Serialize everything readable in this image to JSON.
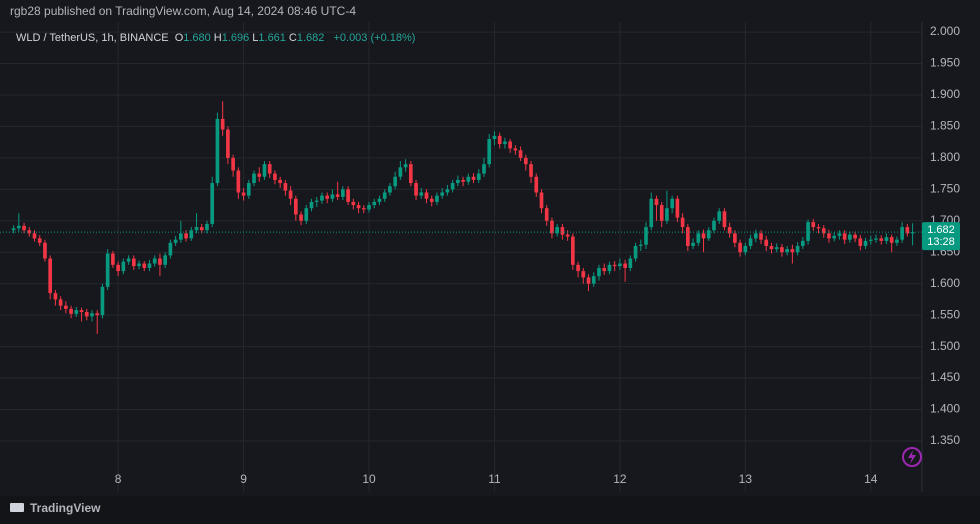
{
  "chart_data": {
    "type": "candlestick",
    "published": "rgb28 published on TradingView.com, Aug 14, 2024 08:46 UTC-4",
    "symbol": "WLD / TetherUS, 1h, BINANCE",
    "ohlc_legend": [
      {
        "label": "O",
        "value": "1.680"
      },
      {
        "label": "H",
        "value": "1.696"
      },
      {
        "label": "L",
        "value": "1.661"
      },
      {
        "label": "C",
        "value": "1.682"
      }
    ],
    "change": "+0.003 (+0.18%)",
    "last_price": "1.682",
    "countdown": "13:28",
    "brand": "TradingView",
    "up_color": "#089981",
    "down_color": "#f23645",
    "grid": true,
    "xlim": [
      1.4,
      177.8
    ],
    "xticks": [
      {
        "value": 24,
        "label": "8"
      },
      {
        "value": 48,
        "label": "9"
      },
      {
        "value": 72,
        "label": "10"
      },
      {
        "value": 96,
        "label": "11"
      },
      {
        "value": 120,
        "label": "12"
      },
      {
        "value": 144,
        "label": "13"
      },
      {
        "value": 168,
        "label": "14"
      }
    ],
    "ylim": [
      1.307,
      2.016
    ],
    "yticks": [
      {
        "value": 1.35,
        "label": "1.350"
      },
      {
        "value": 1.4,
        "label": "1.400"
      },
      {
        "value": 1.45,
        "label": "1.450"
      },
      {
        "value": 1.5,
        "label": "1.500"
      },
      {
        "value": 1.55,
        "label": "1.550"
      },
      {
        "value": 1.6,
        "label": "1.600"
      },
      {
        "value": 1.65,
        "label": "1.650"
      },
      {
        "value": 1.7,
        "label": "1.700"
      },
      {
        "value": 1.75,
        "label": "1.750"
      },
      {
        "value": 1.8,
        "label": "1.800"
      },
      {
        "value": 1.85,
        "label": "1.850"
      },
      {
        "value": 1.9,
        "label": "1.900"
      },
      {
        "value": 1.95,
        "label": "1.950"
      },
      {
        "value": 2.0,
        "label": "2.000"
      }
    ],
    "x": [
      4,
      5,
      6,
      7,
      8,
      9,
      10,
      11,
      12,
      13,
      14,
      15,
      16,
      17,
      18,
      19,
      20,
      21,
      22,
      23,
      24,
      25,
      26,
      27,
      28,
      29,
      30,
      31,
      32,
      33,
      34,
      35,
      36,
      37,
      38,
      39,
      40,
      41,
      42,
      43,
      44,
      45,
      46,
      47,
      48,
      49,
      50,
      51,
      52,
      53,
      54,
      55,
      56,
      57,
      58,
      59,
      60,
      61,
      62,
      63,
      64,
      65,
      66,
      67,
      68,
      69,
      70,
      71,
      72,
      73,
      74,
      75,
      76,
      77,
      78,
      79,
      80,
      81,
      82,
      83,
      84,
      85,
      86,
      87,
      88,
      89,
      90,
      91,
      92,
      93,
      94,
      95,
      96,
      97,
      98,
      99,
      100,
      101,
      102,
      103,
      104,
      105,
      106,
      107,
      108,
      109,
      110,
      111,
      112,
      113,
      114,
      115,
      116,
      117,
      118,
      119,
      120,
      121,
      122,
      123,
      124,
      125,
      126,
      127,
      128,
      129,
      130,
      131,
      132,
      133,
      134,
      135,
      136,
      137,
      138,
      139,
      140,
      141,
      142,
      143,
      144,
      145,
      146,
      147,
      148,
      149,
      150,
      151,
      152,
      153,
      154,
      155,
      156,
      157,
      158,
      159,
      160,
      161,
      162,
      163,
      164,
      165,
      166,
      167,
      168,
      169,
      170,
      171,
      172,
      173,
      174,
      175,
      176
    ],
    "ohlc": [
      [
        1.685,
        1.693,
        1.68,
        1.688
      ],
      [
        1.688,
        1.712,
        1.683,
        1.692
      ],
      [
        1.692,
        1.697,
        1.68,
        1.685
      ],
      [
        1.685,
        1.69,
        1.675,
        1.68
      ],
      [
        1.68,
        1.685,
        1.667,
        1.672
      ],
      [
        1.672,
        1.677,
        1.66,
        1.665
      ],
      [
        1.665,
        1.67,
        1.635,
        1.64
      ],
      [
        1.64,
        1.645,
        1.575,
        1.585
      ],
      [
        1.585,
        1.59,
        1.565,
        1.575
      ],
      [
        1.575,
        1.58,
        1.558,
        1.565
      ],
      [
        1.565,
        1.572,
        1.553,
        1.56
      ],
      [
        1.56,
        1.565,
        1.545,
        1.552
      ],
      [
        1.552,
        1.563,
        1.547,
        1.558
      ],
      [
        1.558,
        1.562,
        1.54,
        1.555
      ],
      [
        1.555,
        1.56,
        1.542,
        1.548
      ],
      [
        1.548,
        1.558,
        1.54,
        1.553
      ],
      [
        1.553,
        1.558,
        1.52,
        1.55
      ],
      [
        1.55,
        1.6,
        1.545,
        1.595
      ],
      [
        1.595,
        1.655,
        1.59,
        1.648
      ],
      [
        1.648,
        1.652,
        1.625,
        1.63
      ],
      [
        1.63,
        1.635,
        1.612,
        1.62
      ],
      [
        1.62,
        1.64,
        1.615,
        1.635
      ],
      [
        1.635,
        1.645,
        1.63,
        1.64
      ],
      [
        1.64,
        1.645,
        1.622,
        1.628
      ],
      [
        1.628,
        1.637,
        1.623,
        1.632
      ],
      [
        1.632,
        1.636,
        1.62,
        1.625
      ],
      [
        1.625,
        1.638,
        1.62,
        1.632
      ],
      [
        1.632,
        1.645,
        1.627,
        1.64
      ],
      [
        1.64,
        1.648,
        1.612,
        1.63
      ],
      [
        1.63,
        1.65,
        1.625,
        1.645
      ],
      [
        1.645,
        1.67,
        1.64,
        1.665
      ],
      [
        1.665,
        1.676,
        1.66,
        1.67
      ],
      [
        1.67,
        1.7,
        1.665,
        1.68
      ],
      [
        1.68,
        1.685,
        1.667,
        1.672
      ],
      [
        1.672,
        1.69,
        1.668,
        1.685
      ],
      [
        1.685,
        1.712,
        1.68,
        1.69
      ],
      [
        1.69,
        1.695,
        1.68,
        1.685
      ],
      [
        1.685,
        1.7,
        1.68,
        1.695
      ],
      [
        1.695,
        1.77,
        1.69,
        1.76
      ],
      [
        1.76,
        1.872,
        1.755,
        1.862
      ],
      [
        1.862,
        1.89,
        1.835,
        1.845
      ],
      [
        1.845,
        1.85,
        1.79,
        1.8
      ],
      [
        1.8,
        1.805,
        1.77,
        1.78
      ],
      [
        1.78,
        1.785,
        1.735,
        1.745
      ],
      [
        1.745,
        1.752,
        1.732,
        1.74
      ],
      [
        1.74,
        1.765,
        1.735,
        1.76
      ],
      [
        1.76,
        1.78,
        1.755,
        1.775
      ],
      [
        1.775,
        1.785,
        1.762,
        1.77
      ],
      [
        1.77,
        1.795,
        1.765,
        1.79
      ],
      [
        1.79,
        1.795,
        1.768,
        1.775
      ],
      [
        1.775,
        1.78,
        1.758,
        1.765
      ],
      [
        1.765,
        1.77,
        1.752,
        1.76
      ],
      [
        1.76,
        1.765,
        1.74,
        1.748
      ],
      [
        1.748,
        1.755,
        1.725,
        1.735
      ],
      [
        1.735,
        1.74,
        1.7,
        1.71
      ],
      [
        1.71,
        1.715,
        1.693,
        1.7
      ],
      [
        1.7,
        1.725,
        1.695,
        1.72
      ],
      [
        1.72,
        1.735,
        1.715,
        1.73
      ],
      [
        1.73,
        1.738,
        1.722,
        1.732
      ],
      [
        1.732,
        1.745,
        1.727,
        1.74
      ],
      [
        1.74,
        1.745,
        1.728,
        1.735
      ],
      [
        1.735,
        1.75,
        1.73,
        1.742
      ],
      [
        1.742,
        1.762,
        1.733,
        1.738
      ],
      [
        1.738,
        1.755,
        1.733,
        1.75
      ],
      [
        1.75,
        1.755,
        1.725,
        1.73
      ],
      [
        1.73,
        1.735,
        1.718,
        1.725
      ],
      [
        1.725,
        1.73,
        1.712,
        1.72
      ],
      [
        1.72,
        1.725,
        1.712,
        1.718
      ],
      [
        1.718,
        1.73,
        1.713,
        1.725
      ],
      [
        1.725,
        1.735,
        1.72,
        1.73
      ],
      [
        1.73,
        1.74,
        1.725,
        1.735
      ],
      [
        1.735,
        1.75,
        1.73,
        1.745
      ],
      [
        1.745,
        1.76,
        1.74,
        1.755
      ],
      [
        1.755,
        1.778,
        1.75,
        1.77
      ],
      [
        1.77,
        1.795,
        1.765,
        1.785
      ],
      [
        1.785,
        1.798,
        1.778,
        1.79
      ],
      [
        1.79,
        1.795,
        1.755,
        1.76
      ],
      [
        1.76,
        1.765,
        1.733,
        1.74
      ],
      [
        1.74,
        1.752,
        1.735,
        1.745
      ],
      [
        1.745,
        1.75,
        1.728,
        1.735
      ],
      [
        1.735,
        1.74,
        1.723,
        1.73
      ],
      [
        1.73,
        1.745,
        1.725,
        1.74
      ],
      [
        1.74,
        1.752,
        1.735,
        1.745
      ],
      [
        1.745,
        1.757,
        1.74,
        1.75
      ],
      [
        1.75,
        1.765,
        1.745,
        1.76
      ],
      [
        1.76,
        1.772,
        1.755,
        1.765
      ],
      [
        1.765,
        1.77,
        1.755,
        1.762
      ],
      [
        1.762,
        1.775,
        1.757,
        1.77
      ],
      [
        1.77,
        1.776,
        1.76,
        1.765
      ],
      [
        1.765,
        1.782,
        1.76,
        1.775
      ],
      [
        1.775,
        1.8,
        1.77,
        1.79
      ],
      [
        1.79,
        1.838,
        1.785,
        1.83
      ],
      [
        1.83,
        1.842,
        1.82,
        1.835
      ],
      [
        1.835,
        1.84,
        1.815,
        1.822
      ],
      [
        1.822,
        1.832,
        1.815,
        1.826
      ],
      [
        1.826,
        1.83,
        1.808,
        1.815
      ],
      [
        1.815,
        1.82,
        1.805,
        1.812
      ],
      [
        1.812,
        1.818,
        1.795,
        1.8
      ],
      [
        1.8,
        1.805,
        1.78,
        1.79
      ],
      [
        1.79,
        1.795,
        1.76,
        1.77
      ],
      [
        1.77,
        1.775,
        1.738,
        1.745
      ],
      [
        1.745,
        1.75,
        1.712,
        1.72
      ],
      [
        1.72,
        1.725,
        1.692,
        1.7
      ],
      [
        1.7,
        1.705,
        1.672,
        1.68
      ],
      [
        1.68,
        1.695,
        1.675,
        1.69
      ],
      [
        1.69,
        1.695,
        1.67,
        1.678
      ],
      [
        1.678,
        1.685,
        1.668,
        1.675
      ],
      [
        1.675,
        1.68,
        1.622,
        1.63
      ],
      [
        1.63,
        1.635,
        1.61,
        1.62
      ],
      [
        1.62,
        1.625,
        1.6,
        1.61
      ],
      [
        1.61,
        1.615,
        1.588,
        1.6
      ],
      [
        1.6,
        1.618,
        1.595,
        1.612
      ],
      [
        1.612,
        1.63,
        1.605,
        1.625
      ],
      [
        1.625,
        1.632,
        1.614,
        1.62
      ],
      [
        1.62,
        1.635,
        1.615,
        1.63
      ],
      [
        1.63,
        1.636,
        1.62,
        1.628
      ],
      [
        1.628,
        1.64,
        1.622,
        1.632
      ],
      [
        1.632,
        1.638,
        1.603,
        1.625
      ],
      [
        1.625,
        1.645,
        1.62,
        1.64
      ],
      [
        1.64,
        1.665,
        1.635,
        1.66
      ],
      [
        1.66,
        1.67,
        1.652,
        1.662
      ],
      [
        1.662,
        1.698,
        1.655,
        1.69
      ],
      [
        1.69,
        1.745,
        1.685,
        1.735
      ],
      [
        1.735,
        1.74,
        1.7,
        1.725
      ],
      [
        1.725,
        1.73,
        1.69,
        1.7
      ],
      [
        1.7,
        1.748,
        1.695,
        1.72
      ],
      [
        1.72,
        1.74,
        1.712,
        1.735
      ],
      [
        1.735,
        1.74,
        1.698,
        1.705
      ],
      [
        1.705,
        1.712,
        1.68,
        1.69
      ],
      [
        1.69,
        1.695,
        1.652,
        1.66
      ],
      [
        1.66,
        1.672,
        1.655,
        1.665
      ],
      [
        1.665,
        1.685,
        1.66,
        1.68
      ],
      [
        1.68,
        1.686,
        1.65,
        1.672
      ],
      [
        1.672,
        1.69,
        1.668,
        1.685
      ],
      [
        1.685,
        1.705,
        1.68,
        1.7
      ],
      [
        1.7,
        1.72,
        1.695,
        1.715
      ],
      [
        1.715,
        1.72,
        1.685,
        1.69
      ],
      [
        1.69,
        1.697,
        1.673,
        1.68
      ],
      [
        1.68,
        1.685,
        1.658,
        1.665
      ],
      [
        1.665,
        1.67,
        1.643,
        1.65
      ],
      [
        1.65,
        1.665,
        1.645,
        1.66
      ],
      [
        1.66,
        1.678,
        1.655,
        1.672
      ],
      [
        1.672,
        1.686,
        1.666,
        1.68
      ],
      [
        1.68,
        1.685,
        1.663,
        1.67
      ],
      [
        1.67,
        1.676,
        1.652,
        1.66
      ],
      [
        1.66,
        1.665,
        1.648,
        1.655
      ],
      [
        1.655,
        1.664,
        1.65,
        1.658
      ],
      [
        1.658,
        1.663,
        1.643,
        1.65
      ],
      [
        1.65,
        1.66,
        1.645,
        1.655
      ],
      [
        1.655,
        1.662,
        1.632,
        1.65
      ],
      [
        1.65,
        1.666,
        1.645,
        1.66
      ],
      [
        1.66,
        1.674,
        1.655,
        1.668
      ],
      [
        1.668,
        1.702,
        1.662,
        1.698
      ],
      [
        1.698,
        1.703,
        1.684,
        1.69
      ],
      [
        1.69,
        1.695,
        1.68,
        1.688
      ],
      [
        1.688,
        1.693,
        1.673,
        1.68
      ],
      [
        1.68,
        1.686,
        1.665,
        1.672
      ],
      [
        1.672,
        1.682,
        1.667,
        1.676
      ],
      [
        1.676,
        1.685,
        1.67,
        1.68
      ],
      [
        1.68,
        1.685,
        1.663,
        1.67
      ],
      [
        1.67,
        1.683,
        1.665,
        1.678
      ],
      [
        1.678,
        1.683,
        1.666,
        1.672
      ],
      [
        1.672,
        1.677,
        1.653,
        1.66
      ],
      [
        1.66,
        1.673,
        1.655,
        1.668
      ],
      [
        1.668,
        1.676,
        1.662,
        1.67
      ],
      [
        1.67,
        1.678,
        1.665,
        1.672
      ],
      [
        1.672,
        1.677,
        1.662,
        1.668
      ],
      [
        1.668,
        1.68,
        1.663,
        1.674
      ],
      [
        1.674,
        1.678,
        1.65,
        1.665
      ],
      [
        1.665,
        1.675,
        1.66,
        1.67
      ],
      [
        1.67,
        1.698,
        1.665,
        1.69
      ],
      [
        1.69,
        1.695,
        1.675,
        1.68
      ],
      [
        1.68,
        1.696,
        1.661,
        1.682
      ]
    ]
  }
}
